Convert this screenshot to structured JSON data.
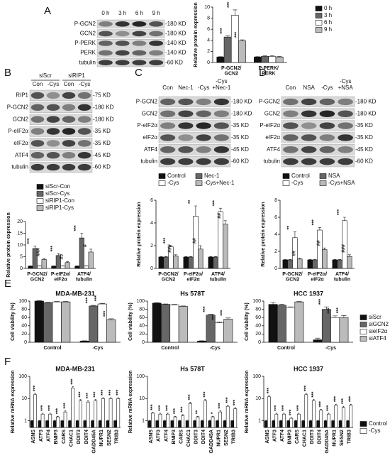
{
  "panel_labels": [
    "A",
    "B",
    "C",
    "D",
    "E",
    "F"
  ],
  "blots": [
    {
      "lanes": [
        "0 h",
        "3 h",
        "6 h",
        "9 h"
      ],
      "rows": [
        "P-GCN2",
        "GCN2",
        "P-PERK",
        "PERK",
        "tubulin"
      ],
      "sizes": [
        "-180 KD",
        "-180 KD",
        "-140 KD",
        "-140 KD",
        "-60 KD"
      ]
    },
    {
      "groups": [
        "siScr",
        "siRIP1"
      ],
      "lanes": [
        "Con",
        "-Cys",
        "Con",
        "-Cys"
      ],
      "rows": [
        "RIP1",
        "P-GCN2",
        "GCN2",
        "P-eIF2α",
        "eIF2α",
        "ATF4",
        "tubulin"
      ],
      "sizes": [
        "-75 KD",
        "-180 KD",
        "-180 KD",
        "-35 KD",
        "-35 KD",
        "-45 KD",
        "-60 KD"
      ]
    },
    {
      "lanes": [
        "Con",
        "Nec-1",
        "-Cys",
        "-Cys\n+Nec-1"
      ],
      "rows": [
        "P-GCN2",
        "GCN2",
        "P-eIF2α",
        "eIF2α",
        "ATF4",
        "tubulin"
      ],
      "sizes": [
        "-180 KD",
        "-180 KD",
        "-35 KD",
        "-35 KD",
        "-45 KD",
        "-60 KD"
      ]
    },
    {
      "lanes": [
        "Con",
        "NSA",
        "-Cys",
        "-Cys\n+NSA"
      ],
      "rows": [
        "P-GCN2",
        "GCN2",
        "P-eIF2α",
        "eIF2α",
        "ATF4",
        "tubulin"
      ],
      "sizes": [
        "-180 KD",
        "-180 KD",
        "-35 KD",
        "-35 KD",
        "-45 KD",
        "-60 KD"
      ]
    }
  ],
  "chart_data": [
    {
      "type": "bar",
      "y_label": "Relative protein expression",
      "categories": [
        "P-GCN2/\nGCN2",
        "P-PERK/\nPERK"
      ],
      "ylim": [
        0,
        10
      ],
      "yticks": [
        0,
        2,
        4,
        6,
        8,
        10
      ],
      "legend": "right",
      "series": [
        {
          "name": "0 h",
          "color": "#111111",
          "values": [
            1,
            1
          ],
          "errors": [
            0.05,
            0.05
          ],
          "significance": [
            null,
            null
          ]
        },
        {
          "name": "3 h",
          "color": "#666666",
          "values": [
            4.6,
            1.1
          ],
          "errors": [
            0.2,
            0.1
          ],
          "significance": [
            "***",
            null
          ]
        },
        {
          "name": "6 h",
          "color": "#ffffff",
          "values": [
            8.5,
            1.1
          ],
          "errors": [
            1.0,
            0.1
          ],
          "significance": [
            "***",
            null
          ]
        },
        {
          "name": "9 h",
          "color": "#bbbbbb",
          "values": [
            3.9,
            1.0
          ],
          "errors": [
            0.2,
            0.1
          ],
          "significance": [
            "***",
            null
          ]
        }
      ]
    },
    {
      "type": "bar",
      "y_label": "Relative protein expression",
      "categories": [
        "P-GCN2/\nGCN2",
        "P-eIF2α/\neIF2α",
        "ATF4/\ntubulin"
      ],
      "ylim": [
        0,
        20
      ],
      "yticks": [
        0,
        5,
        10,
        15,
        20
      ],
      "legend": "top",
      "series": [
        {
          "name": "siScr-Con",
          "color": "#111111",
          "values": [
            1,
            1,
            1
          ],
          "errors": [
            0.1,
            0.1,
            0.1
          ],
          "significance": [
            null,
            null,
            null
          ]
        },
        {
          "name": "siScr-Cys",
          "color": "#666666",
          "values": [
            8.5,
            5.5,
            13
          ],
          "errors": [
            1,
            0.8,
            2
          ],
          "significance": [
            "***",
            "***",
            "***"
          ]
        },
        {
          "name": "siRIP1-Con",
          "color": "#ffffff",
          "values": [
            1,
            1,
            1
          ],
          "errors": [
            0.1,
            0.1,
            0.1
          ],
          "significance": [
            null,
            null,
            null
          ]
        },
        {
          "name": "siRIP1-Cys",
          "color": "#bbbbbb",
          "values": [
            3.8,
            2.5,
            7
          ],
          "errors": [
            0.5,
            0.4,
            1.2
          ],
          "significance": [
            "###",
            "##",
            "#"
          ]
        }
      ]
    },
    {
      "type": "bar",
      "y_label": "Relative protein expression",
      "categories": [
        "P-GCN2/\nGCN2",
        "P-eIF2α/\neIF2α",
        "ATF4/\ntubulin"
      ],
      "ylim": [
        0,
        6
      ],
      "yticks": [
        0,
        2,
        4,
        6
      ],
      "legend": "top",
      "series": [
        {
          "name": "Control",
          "color": "#111111",
          "values": [
            1,
            1,
            1
          ],
          "errors": [
            0.05,
            0.05,
            0.05
          ],
          "significance": [
            null,
            null,
            null
          ]
        },
        {
          "name": "Nec-1",
          "color": "#666666",
          "values": [
            1,
            1,
            1
          ],
          "errors": [
            0.05,
            0.05,
            0.05
          ],
          "significance": [
            null,
            null,
            null
          ]
        },
        {
          "name": "-Cys",
          "color": "#ffffff",
          "values": [
            1.9,
            4.6,
            5
          ],
          "errors": [
            0.1,
            0.9,
            0.3
          ],
          "significance": [
            "***",
            "**",
            "***"
          ]
        },
        {
          "name": "-Cys+Nec-1",
          "color": "#bbbbbb",
          "values": [
            1.1,
            1.7,
            3.9
          ],
          "errors": [
            0.1,
            0.3,
            0.3
          ],
          "significance": [
            "###",
            "##",
            "##"
          ]
        }
      ]
    },
    {
      "type": "bar",
      "y_label": "Relative protein expression",
      "categories": [
        "P-GCN2/\nGCN2",
        "P-eIF2α/\neIF2α",
        "ATF4/\ntubulin"
      ],
      "ylim": [
        0,
        8
      ],
      "yticks": [
        0,
        2,
        4,
        6,
        8
      ],
      "legend": "top",
      "series": [
        {
          "name": "Control",
          "color": "#111111",
          "values": [
            1,
            1,
            1
          ],
          "errors": [
            0.05,
            0.05,
            0.05
          ],
          "significance": [
            null,
            null,
            null
          ]
        },
        {
          "name": "NSA",
          "color": "#666666",
          "values": [
            1,
            1,
            1
          ],
          "errors": [
            0.05,
            0.05,
            0.05
          ],
          "significance": [
            null,
            null,
            null
          ]
        },
        {
          "name": "-Cys",
          "color": "#ffffff",
          "values": [
            3.6,
            4.5,
            5.6
          ],
          "errors": [
            0.7,
            0.3,
            0.4
          ],
          "significance": [
            "**",
            "***",
            "***"
          ]
        },
        {
          "name": "-Cys+NSA",
          "color": "#bbbbbb",
          "values": [
            1.1,
            2.2,
            1.4
          ],
          "errors": [
            0.1,
            0.2,
            0.2
          ],
          "significance": [
            "##",
            "##",
            "###"
          ]
        }
      ]
    },
    {
      "type": "bar",
      "title": "MDA-MB-231",
      "y_label": "Cell viability (%)",
      "categories": [
        "Control",
        "-Cys"
      ],
      "ylim": [
        0,
        100
      ],
      "yticks": [
        0,
        20,
        40,
        60,
        80,
        100
      ],
      "series": [
        {
          "name": "siScr",
          "color": "#111111",
          "values": [
            100,
            3
          ],
          "errors": [
            1,
            0.5
          ],
          "significance": [
            null,
            null
          ]
        },
        {
          "name": "siGCN2",
          "color": "#666666",
          "values": [
            96,
            88
          ],
          "errors": [
            1,
            1.5
          ],
          "significance": [
            null,
            "***"
          ]
        },
        {
          "name": "sieIF2α",
          "color": "#ffffff",
          "values": [
            98,
            93
          ],
          "errors": [
            1,
            1.5
          ],
          "significance": [
            null,
            "***"
          ]
        },
        {
          "name": "siATF4",
          "color": "#bbbbbb",
          "values": [
            98,
            55
          ],
          "errors": [
            1,
            2
          ],
          "significance": [
            null,
            "***"
          ]
        }
      ]
    },
    {
      "type": "bar",
      "title": "Hs 578T",
      "y_label": "Cell viability (%)",
      "categories": [
        "Control",
        "-Cys"
      ],
      "ylim": [
        0,
        100
      ],
      "yticks": [
        0,
        20,
        40,
        60,
        80,
        100
      ],
      "series": [
        {
          "name": "siScr",
          "color": "#111111",
          "values": [
            95,
            3
          ],
          "errors": [
            1,
            0.5
          ],
          "significance": [
            null,
            null
          ]
        },
        {
          "name": "siGCN2",
          "color": "#666666",
          "values": [
            92,
            66
          ],
          "errors": [
            1,
            2
          ],
          "significance": [
            null,
            "***"
          ]
        },
        {
          "name": "sieIF2α",
          "color": "#ffffff",
          "values": [
            91,
            47
          ],
          "errors": [
            1,
            2
          ],
          "significance": [
            null,
            "***"
          ]
        },
        {
          "name": "siATF4",
          "color": "#bbbbbb",
          "values": [
            87,
            56
          ],
          "errors": [
            1,
            3
          ],
          "significance": [
            null,
            "***"
          ]
        }
      ]
    },
    {
      "type": "bar",
      "title": "HCC 1937",
      "y_label": "Cell viability (%)",
      "categories": [
        "Control",
        "-Cys"
      ],
      "ylim": [
        0,
        100
      ],
      "yticks": [
        0,
        20,
        40,
        60,
        80,
        100
      ],
      "legend": "right",
      "series": [
        {
          "name": "siScr",
          "color": "#111111",
          "values": [
            92,
            6
          ],
          "errors": [
            5,
            4
          ],
          "significance": [
            null,
            null
          ]
        },
        {
          "name": "siGCN2",
          "color": "#666666",
          "values": [
            90,
            80
          ],
          "errors": [
            2,
            6
          ],
          "significance": [
            null,
            "***"
          ]
        },
        {
          "name": "sieIF2α",
          "color": "#ffffff",
          "values": [
            85,
            60
          ],
          "errors": [
            1,
            4
          ],
          "significance": [
            null,
            "***"
          ]
        },
        {
          "name": "siATF4",
          "color": "#bbbbbb",
          "values": [
            98,
            60
          ],
          "errors": [
            1,
            5
          ],
          "significance": [
            null,
            "***"
          ]
        }
      ]
    },
    {
      "type": "bar",
      "title": "MDA-MB-231",
      "y_label": "Relative mRNA expression",
      "log_scale": true,
      "categories": [
        "ASNS",
        "ATF3",
        "ATF4",
        "BNIP3",
        "CARS",
        "CHAC1",
        "DDIT3",
        "DDIT4",
        "GADD45A",
        "NUPR1",
        "SESN2",
        "TRIB3"
      ],
      "ylim": [
        0.5,
        100
      ],
      "yticks": [
        1,
        10,
        100
      ],
      "series": [
        {
          "name": "Control",
          "color": "#111111",
          "values": [
            1,
            1,
            1,
            1,
            1,
            1,
            1,
            1,
            1,
            1,
            1,
            1
          ],
          "errors": [
            0.05,
            0.05,
            0.05,
            0.05,
            0.05,
            0.05,
            0.05,
            0.05,
            0.05,
            0.05,
            0.05,
            0.05
          ],
          "significance": [
            null,
            null,
            null,
            null,
            null,
            null,
            null,
            null,
            null,
            null,
            null,
            null
          ]
        },
        {
          "name": "-Cys",
          "color": "#ffffff",
          "values": [
            15,
            2,
            2,
            1.5,
            2.5,
            30,
            8,
            7,
            8,
            10,
            10,
            10
          ],
          "errors": [
            2,
            0.2,
            0.2,
            0.1,
            0.3,
            4,
            1,
            1,
            1,
            1,
            1,
            1
          ],
          "significance": [
            "***",
            "***",
            "***",
            "***",
            "***",
            "***",
            "***",
            "***",
            "***",
            "***",
            "***",
            "***"
          ]
        }
      ]
    },
    {
      "type": "bar",
      "title": "Hs 578T",
      "y_label": "Relative mRNA expression",
      "log_scale": true,
      "categories": [
        "ASNS",
        "ATF3",
        "ATF4",
        "BNIP3",
        "CARS",
        "CHAC1",
        "DDIT3",
        "DDIT4",
        "GADD45A",
        "NUPR1",
        "SESN2",
        "TRIB3"
      ],
      "ylim": [
        0.5,
        100
      ],
      "yticks": [
        1,
        10,
        100
      ],
      "series": [
        {
          "name": "Control",
          "color": "#111111",
          "values": [
            1,
            1,
            1,
            1,
            1,
            1,
            1,
            1,
            1,
            1,
            1,
            1
          ],
          "errors": [
            0.05,
            0.05,
            0.05,
            0.05,
            0.05,
            0.05,
            0.05,
            0.05,
            0.05,
            0.05,
            0.05,
            0.05
          ],
          "significance": [
            null,
            null,
            null,
            null,
            null,
            null,
            null,
            null,
            null,
            null,
            null,
            null
          ]
        },
        {
          "name": "-Cys",
          "color": "#ffffff",
          "values": [
            2.2,
            2,
            2,
            1.5,
            1.7,
            6,
            1.5,
            8,
            1.5,
            2.5,
            4.5,
            3.5
          ],
          "errors": [
            0.2,
            0.2,
            0.2,
            0.1,
            0.2,
            0.8,
            0.1,
            1,
            0.1,
            0.3,
            0.5,
            0.4
          ],
          "significance": [
            "***",
            "***",
            "***",
            "***",
            "***",
            "***",
            "**",
            "***",
            "*",
            "***",
            "***",
            "***"
          ]
        }
      ]
    },
    {
      "type": "bar",
      "title": "HCC 1937",
      "y_label": "Relative mRNA expression",
      "log_scale": true,
      "categories": [
        "ASNS",
        "ATF3",
        "ATF4",
        "BNIP3",
        "CARS",
        "CHAC1",
        "DDIT3",
        "DDIT4",
        "GADD45A",
        "NUPR1",
        "SESN2",
        "TRIB3"
      ],
      "ylim": [
        0.5,
        100
      ],
      "yticks": [
        1,
        10,
        100
      ],
      "legend": "right",
      "series": [
        {
          "name": "Control",
          "color": "#111111",
          "values": [
            1,
            1,
            1,
            1,
            1,
            1,
            1,
            1,
            1,
            1,
            1,
            1
          ],
          "errors": [
            0.05,
            0.05,
            0.05,
            0.05,
            0.05,
            0.05,
            0.05,
            0.05,
            0.05,
            0.05,
            0.05,
            0.05
          ],
          "significance": [
            null,
            null,
            null,
            null,
            null,
            null,
            null,
            null,
            null,
            null,
            null,
            null
          ]
        },
        {
          "name": "-Cys",
          "color": "#ffffff",
          "values": [
            12,
            2,
            2,
            1.3,
            2,
            15,
            8,
            3,
            2,
            5,
            4,
            5
          ],
          "errors": [
            1.5,
            0.2,
            0.2,
            0.1,
            0.2,
            2,
            1,
            0.3,
            0.2,
            0.6,
            0.5,
            0.6
          ],
          "significance": [
            "***",
            "***",
            "***",
            "***",
            "***",
            "***",
            "***",
            "***",
            "***",
            "***",
            "***",
            "***"
          ]
        }
      ]
    }
  ]
}
